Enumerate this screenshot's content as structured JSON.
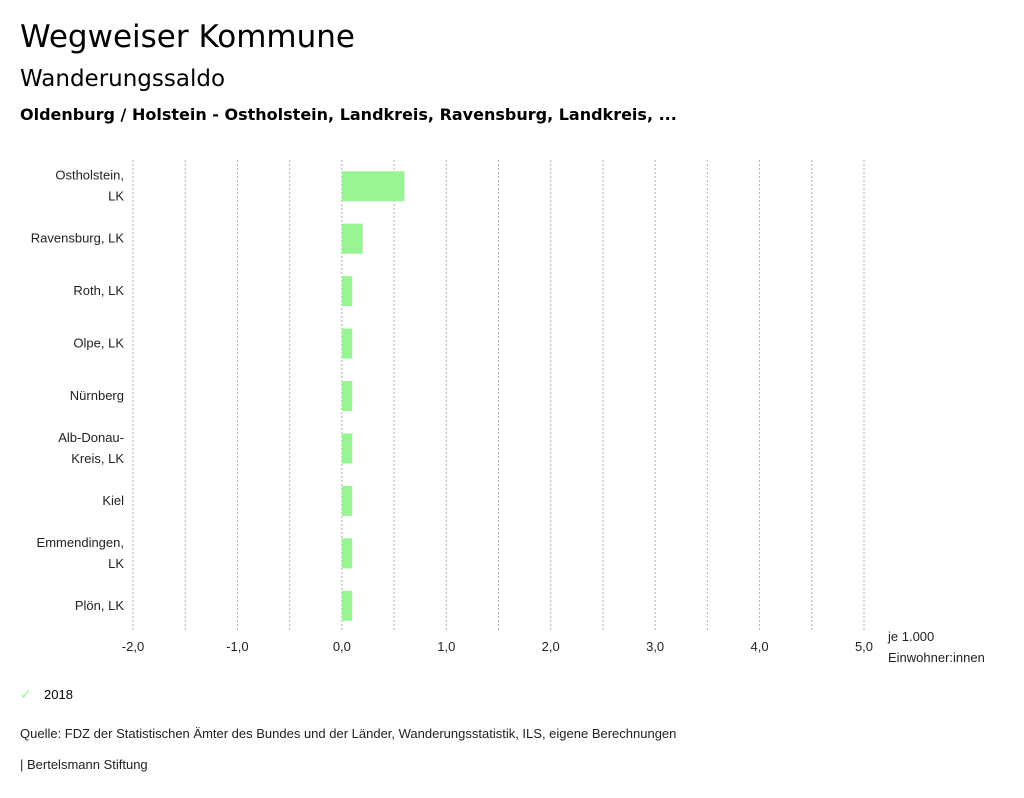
{
  "header": {
    "title": "Wegweiser Kommune",
    "subtitle": "Wanderungssaldo",
    "context": "Oldenburg / Holstein - Ostholstein, Landkreis, Ravensburg, Landkreis, ..."
  },
  "chart_data": {
    "type": "bar",
    "orientation": "horizontal",
    "categories": [
      [
        "Ostholstein,",
        "LK"
      ],
      [
        "Ravensburg, LK"
      ],
      [
        "Roth, LK"
      ],
      [
        "Olpe, LK"
      ],
      [
        "Nürnberg"
      ],
      [
        "Alb-Donau-",
        "Kreis, LK"
      ],
      [
        "Kiel"
      ],
      [
        "Emmendingen,",
        "LK"
      ],
      [
        "Plön, LK"
      ]
    ],
    "series": [
      {
        "name": "2018",
        "color": "#99f594",
        "values": [
          0.6,
          0.2,
          0.1,
          0.1,
          0.1,
          0.1,
          0.1,
          0.1,
          0.1
        ]
      }
    ],
    "xlim": [
      -2.0,
      5.0
    ],
    "xticks": [
      -2.0,
      -1.0,
      0.0,
      1.0,
      2.0,
      3.0,
      4.0,
      5.0
    ],
    "xtick_labels": [
      "-2,0",
      "-1,0",
      "0,0",
      "1,0",
      "2,0",
      "3,0",
      "4,0",
      "5,0"
    ],
    "gridlines_every": 0.5,
    "grid": true,
    "xlabel": [
      "je 1.000",
      "Einwohner:innen"
    ],
    "legend_position": "bottom-left"
  },
  "legend": {
    "icon": "check-icon",
    "label": "2018"
  },
  "footer": {
    "source": "Quelle: FDZ der Statistischen Ämter des Bundes und der Länder, Wanderungsstatistik, ILS, eigene Berechnungen",
    "credit": "| Bertelsmann Stiftung"
  }
}
